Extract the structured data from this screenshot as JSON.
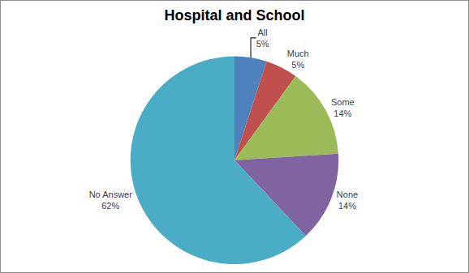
{
  "chart_data": {
    "type": "pie",
    "title": "Hospital and School",
    "categories": [
      "All",
      "Much",
      "Some",
      "None",
      "No Answer"
    ],
    "values": [
      5,
      5,
      14,
      14,
      62
    ],
    "value_labels": [
      "5%",
      "5%",
      "14%",
      "14%",
      "62%"
    ],
    "colors": [
      "#4f81bd",
      "#c0504d",
      "#9bbb59",
      "#8064a2",
      "#4bacc6"
    ],
    "data_labels": true
  }
}
